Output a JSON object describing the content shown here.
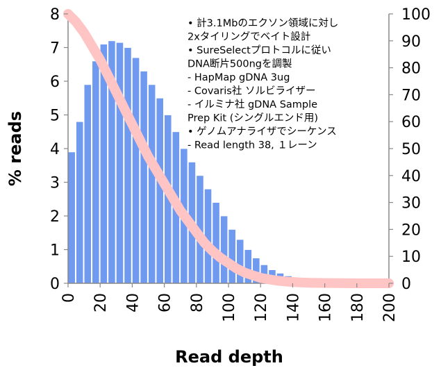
{
  "chart_data": {
    "type": "bar",
    "x": [
      0,
      5,
      10,
      15,
      20,
      25,
      30,
      35,
      40,
      45,
      50,
      55,
      60,
      65,
      70,
      75,
      80,
      85,
      90,
      95,
      100,
      105,
      110,
      115,
      120,
      125,
      130,
      135,
      140,
      145,
      150,
      155,
      160,
      165,
      170,
      175,
      180,
      185,
      190,
      195,
      200
    ],
    "values": [
      3.9,
      4.8,
      5.9,
      6.6,
      7.1,
      7.2,
      7.15,
      7.0,
      6.7,
      6.3,
      5.9,
      5.5,
      5.0,
      4.5,
      4.0,
      3.6,
      3.2,
      2.8,
      2.4,
      2.0,
      1.6,
      1.3,
      1.0,
      0.75,
      0.55,
      0.4,
      0.3,
      0.22,
      0.15,
      0.1,
      0.07,
      0.05,
      0.03,
      0.02,
      0.01,
      0.01,
      0.0,
      0.0,
      0.0,
      0.0,
      0.0
    ],
    "cumulative": {
      "x": [
        0,
        5,
        10,
        15,
        20,
        25,
        30,
        35,
        40,
        45,
        50,
        55,
        60,
        65,
        70,
        75,
        80,
        85,
        90,
        95,
        100,
        105,
        110,
        115,
        120,
        125,
        130,
        135,
        140,
        145,
        150,
        160,
        170,
        180,
        190,
        200
      ],
      "values": [
        100,
        97,
        93,
        88,
        83,
        77,
        71,
        65,
        59,
        53,
        47,
        42,
        37,
        32,
        27,
        23,
        19,
        15,
        12,
        9.5,
        7.5,
        5.5,
        4,
        3,
        2,
        1.5,
        1,
        0.7,
        0.5,
        0.3,
        0.2,
        0.1,
        0.05,
        0,
        0,
        0
      ]
    },
    "xlabel": "Read depth",
    "ylabel": "% reads",
    "xlim": [
      0,
      200
    ],
    "ylim": [
      0,
      8
    ],
    "y2lim": [
      0,
      100
    ],
    "x_ticks": [
      "0",
      "20",
      "40",
      "60",
      "80",
      "100",
      "120",
      "140",
      "160",
      "180",
      "200"
    ],
    "y_ticks": [
      "0",
      "1",
      "2",
      "3",
      "4",
      "5",
      "6",
      "7",
      "8"
    ],
    "y2_ticks": [
      "0",
      "10",
      "20",
      "30",
      "40",
      "50",
      "60",
      "70",
      "80",
      "90",
      "100"
    ],
    "bar_color": "#6f9af0",
    "line_color": "#ffc4c4",
    "grid": false
  },
  "annotation": [
    "• 計3.1Mbのエクソン領域に対し",
    "  2xタイリングでベイト設計",
    "• SureSelectプロトコルに従い",
    "  DNA断片500ngを調製",
    "  - HapMap gDNA 3ug",
    "  - Covaris社 ソルビライザー",
    "  - イルミナ社 gDNA Sample",
    "    Prep Kit (シングルエンド用)",
    "• ゲノムアナライザでシーケンス",
    "  - Read length 38, １レーン"
  ]
}
